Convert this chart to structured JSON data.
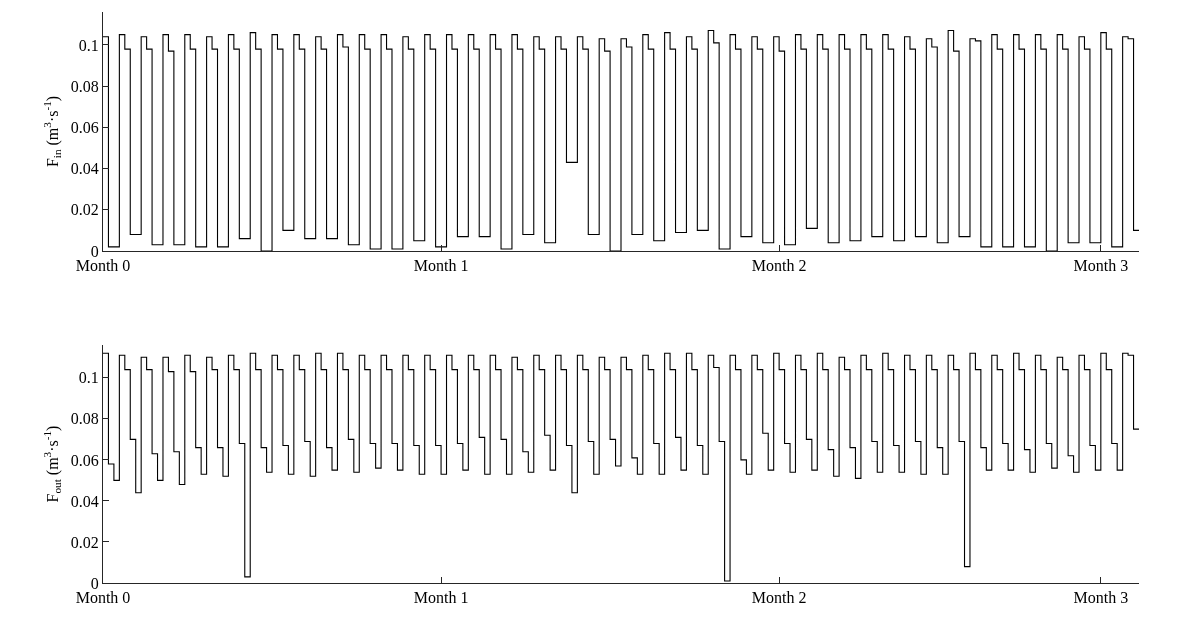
{
  "chart_data": [
    {
      "type": "step",
      "ylabel": "F$_{in}$ (m$^{3}$·s$^{-1}$)",
      "color": "#000000",
      "grid": false,
      "legend": false,
      "categories": [
        "Month 0",
        null,
        null,
        null,
        null,
        null,
        null,
        null,
        null,
        null,
        null,
        null,
        null,
        null,
        null,
        null,
        null,
        null,
        null,
        null,
        null,
        null,
        null,
        null,
        null,
        null,
        null,
        null,
        null,
        null,
        null,
        null,
        null,
        null,
        null,
        null,
        null,
        null,
        null,
        null,
        null,
        null,
        null,
        null,
        null,
        null,
        null,
        null,
        null,
        null,
        null,
        null,
        null,
        null,
        null,
        null,
        null,
        null,
        null,
        null,
        null,
        null,
        "Month 1",
        null,
        null,
        null,
        null,
        null,
        null,
        null,
        null,
        null,
        null,
        null,
        null,
        null,
        null,
        null,
        null,
        null,
        null,
        null,
        null,
        null,
        null,
        null,
        null,
        null,
        null,
        null,
        null,
        null,
        null,
        null,
        null,
        null,
        null,
        null,
        null,
        null,
        null,
        null,
        null,
        null,
        null,
        null,
        null,
        null,
        null,
        null,
        null,
        null,
        null,
        null,
        null,
        null,
        null,
        null,
        null,
        null,
        null,
        null,
        null,
        null,
        "Month 2",
        null,
        null,
        null,
        null,
        null,
        null,
        null,
        null,
        null,
        null,
        null,
        null,
        null,
        null,
        null,
        null,
        null,
        null,
        null,
        null,
        null,
        null,
        null,
        null,
        null,
        null,
        null,
        null,
        null,
        null,
        null,
        null,
        null,
        null,
        null,
        null,
        null,
        null,
        null,
        null,
        null,
        null,
        null,
        null,
        null,
        null,
        null,
        null,
        null,
        null,
        null,
        null,
        null,
        null,
        null,
        null,
        null,
        null,
        "Month 3",
        null,
        null,
        null,
        null,
        null,
        null,
        null
      ],
      "values": [
        0.104,
        0.002,
        0.002,
        0.105,
        0.098,
        0.008,
        0.008,
        0.104,
        0.098,
        0.003,
        0.003,
        0.105,
        0.097,
        0.003,
        0.003,
        0.105,
        0.098,
        0.002,
        0.002,
        0.104,
        0.098,
        0.002,
        0.002,
        0.105,
        0.098,
        0.006,
        0.006,
        0.106,
        0.098,
        0.0,
        0.0,
        0.105,
        0.098,
        0.01,
        0.01,
        0.105,
        0.098,
        0.006,
        0.006,
        0.104,
        0.098,
        0.006,
        0.006,
        0.105,
        0.099,
        0.003,
        0.003,
        0.105,
        0.098,
        0.001,
        0.001,
        0.105,
        0.098,
        0.001,
        0.001,
        0.104,
        0.098,
        0.005,
        0.005,
        0.105,
        0.098,
        0.002,
        0.002,
        0.105,
        0.098,
        0.007,
        0.007,
        0.105,
        0.098,
        0.007,
        0.007,
        0.105,
        0.098,
        0.001,
        0.001,
        0.105,
        0.098,
        0.008,
        0.008,
        0.104,
        0.098,
        0.004,
        0.004,
        0.104,
        0.098,
        0.043,
        0.043,
        0.104,
        0.098,
        0.008,
        0.008,
        0.103,
        0.097,
        0.0,
        0.0,
        0.103,
        0.099,
        0.008,
        0.008,
        0.105,
        0.098,
        0.005,
        0.005,
        0.106,
        0.098,
        0.009,
        0.009,
        0.104,
        0.098,
        0.01,
        0.01,
        0.107,
        0.101,
        0.001,
        0.001,
        0.105,
        0.098,
        0.007,
        0.007,
        0.104,
        0.098,
        0.004,
        0.004,
        0.104,
        0.097,
        0.003,
        0.003,
        0.105,
        0.098,
        0.011,
        0.011,
        0.105,
        0.098,
        0.004,
        0.004,
        0.105,
        0.098,
        0.005,
        0.005,
        0.105,
        0.098,
        0.007,
        0.007,
        0.105,
        0.098,
        0.005,
        0.005,
        0.104,
        0.098,
        0.007,
        0.007,
        0.103,
        0.099,
        0.004,
        0.004,
        0.107,
        0.097,
        0.007,
        0.007,
        0.103,
        0.102,
        0.002,
        0.002,
        0.105,
        0.098,
        0.002,
        0.002,
        0.105,
        0.098,
        0.002,
        0.002,
        0.105,
        0.098,
        0.0,
        0.0,
        0.105,
        0.098,
        0.004,
        0.004,
        0.104,
        0.098,
        0.004,
        0.004,
        0.106,
        0.098,
        0.002,
        0.002,
        0.104,
        0.103,
        0.01,
        0.01
      ],
      "ylim": [
        0,
        0.116
      ],
      "yticks": [
        0,
        0.02,
        0.04,
        0.06,
        0.08,
        0.1
      ]
    },
    {
      "type": "step",
      "ylabel": "F$_{out}$ (m$^{3}$·s$^{-1}$)",
      "color": "#000000",
      "grid": false,
      "legend": false,
      "categories": [
        "Month 0",
        null,
        null,
        null,
        null,
        null,
        null,
        null,
        null,
        null,
        null,
        null,
        null,
        null,
        null,
        null,
        null,
        null,
        null,
        null,
        null,
        null,
        null,
        null,
        null,
        null,
        null,
        null,
        null,
        null,
        null,
        null,
        null,
        null,
        null,
        null,
        null,
        null,
        null,
        null,
        null,
        null,
        null,
        null,
        null,
        null,
        null,
        null,
        null,
        null,
        null,
        null,
        null,
        null,
        null,
        null,
        null,
        null,
        null,
        null,
        null,
        null,
        "Month 1",
        null,
        null,
        null,
        null,
        null,
        null,
        null,
        null,
        null,
        null,
        null,
        null,
        null,
        null,
        null,
        null,
        null,
        null,
        null,
        null,
        null,
        null,
        null,
        null,
        null,
        null,
        null,
        null,
        null,
        null,
        null,
        null,
        null,
        null,
        null,
        null,
        null,
        null,
        null,
        null,
        null,
        null,
        null,
        null,
        null,
        null,
        null,
        null,
        null,
        null,
        null,
        null,
        null,
        null,
        null,
        null,
        null,
        null,
        null,
        null,
        null,
        "Month 2",
        null,
        null,
        null,
        null,
        null,
        null,
        null,
        null,
        null,
        null,
        null,
        null,
        null,
        null,
        null,
        null,
        null,
        null,
        null,
        null,
        null,
        null,
        null,
        null,
        null,
        null,
        null,
        null,
        null,
        null,
        null,
        null,
        null,
        null,
        null,
        null,
        null,
        null,
        null,
        null,
        null,
        null,
        null,
        null,
        null,
        null,
        null,
        null,
        null,
        null,
        null,
        null,
        null,
        null,
        null,
        null,
        null,
        null,
        "Month 3",
        null,
        null,
        null,
        null,
        null,
        null,
        null
      ],
      "values": [
        0.112,
        0.058,
        0.05,
        0.111,
        0.104,
        0.07,
        0.044,
        0.11,
        0.104,
        0.063,
        0.05,
        0.11,
        0.103,
        0.064,
        0.048,
        0.111,
        0.103,
        0.066,
        0.053,
        0.11,
        0.104,
        0.066,
        0.052,
        0.111,
        0.104,
        0.068,
        0.003,
        0.112,
        0.104,
        0.066,
        0.054,
        0.111,
        0.104,
        0.067,
        0.053,
        0.111,
        0.104,
        0.069,
        0.052,
        0.112,
        0.104,
        0.066,
        0.055,
        0.112,
        0.104,
        0.07,
        0.054,
        0.111,
        0.104,
        0.068,
        0.056,
        0.111,
        0.104,
        0.068,
        0.055,
        0.111,
        0.104,
        0.067,
        0.053,
        0.111,
        0.104,
        0.067,
        0.053,
        0.111,
        0.104,
        0.068,
        0.055,
        0.111,
        0.104,
        0.071,
        0.053,
        0.111,
        0.104,
        0.07,
        0.053,
        0.11,
        0.104,
        0.064,
        0.054,
        0.111,
        0.104,
        0.072,
        0.055,
        0.111,
        0.104,
        0.067,
        0.044,
        0.111,
        0.104,
        0.069,
        0.053,
        0.11,
        0.104,
        0.07,
        0.057,
        0.11,
        0.104,
        0.061,
        0.053,
        0.111,
        0.104,
        0.068,
        0.053,
        0.112,
        0.104,
        0.071,
        0.055,
        0.112,
        0.104,
        0.067,
        0.053,
        0.111,
        0.105,
        0.069,
        0.001,
        0.111,
        0.104,
        0.06,
        0.053,
        0.111,
        0.104,
        0.073,
        0.055,
        0.112,
        0.104,
        0.068,
        0.054,
        0.111,
        0.104,
        0.07,
        0.055,
        0.112,
        0.104,
        0.065,
        0.052,
        0.11,
        0.104,
        0.066,
        0.051,
        0.111,
        0.104,
        0.069,
        0.054,
        0.112,
        0.104,
        0.067,
        0.054,
        0.111,
        0.104,
        0.069,
        0.053,
        0.111,
        0.104,
        0.066,
        0.053,
        0.111,
        0.104,
        0.069,
        0.008,
        0.112,
        0.104,
        0.066,
        0.055,
        0.111,
        0.104,
        0.068,
        0.055,
        0.112,
        0.104,
        0.065,
        0.054,
        0.111,
        0.104,
        0.068,
        0.056,
        0.11,
        0.104,
        0.062,
        0.054,
        0.111,
        0.104,
        0.067,
        0.055,
        0.112,
        0.104,
        0.068,
        0.055,
        0.112,
        0.111,
        0.075,
        0.075
      ],
      "ylim": [
        0,
        0.116
      ],
      "yticks": [
        0,
        0.02,
        0.04,
        0.06,
        0.08,
        0.1
      ]
    }
  ]
}
